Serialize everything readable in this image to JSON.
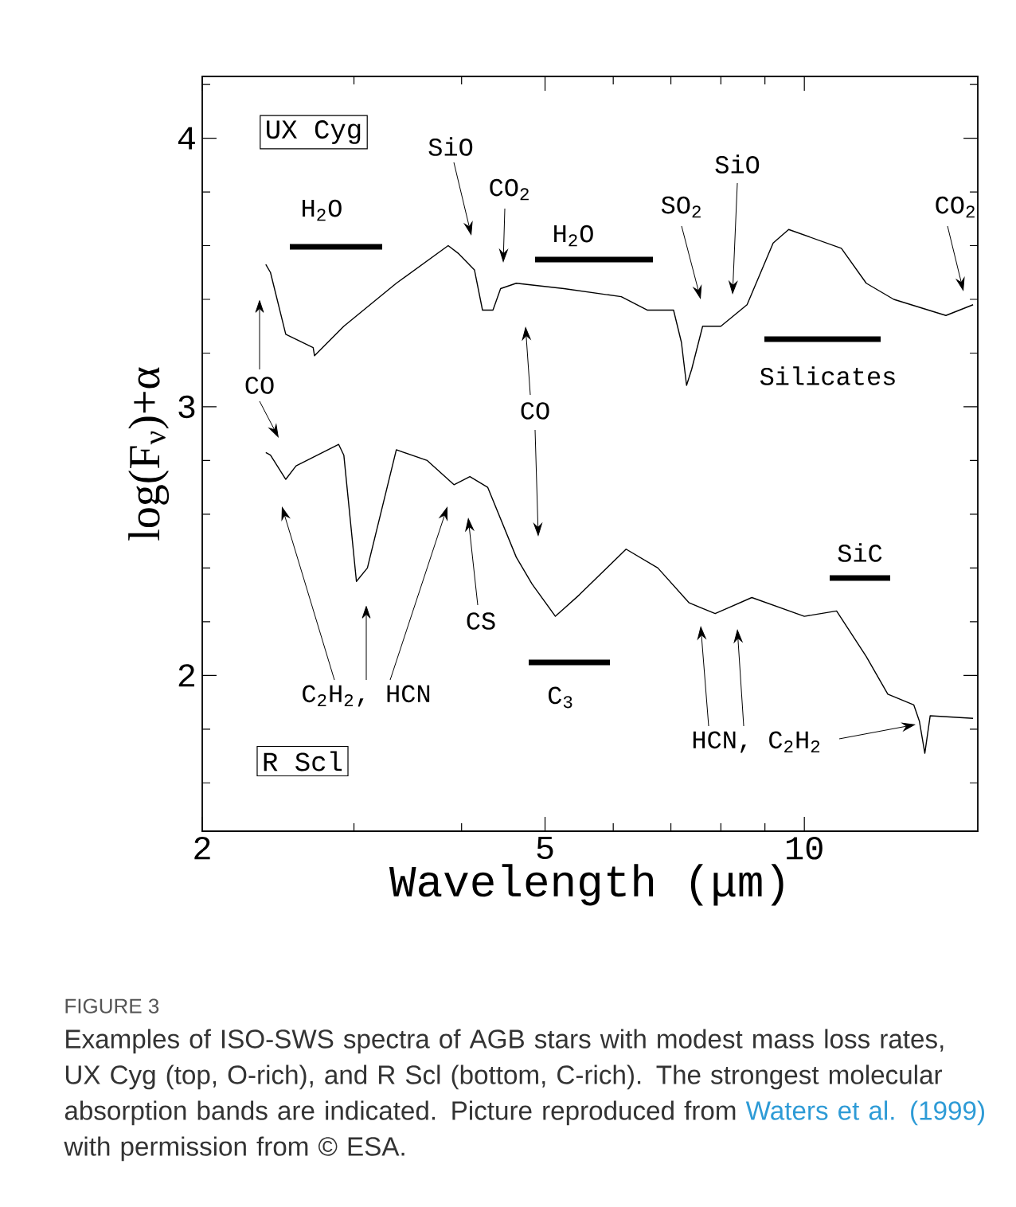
{
  "chart_data": {
    "type": "line",
    "xlabel": "Wavelength (μm)",
    "ylabel": "log(F$_{ν}$)+α",
    "log": "x",
    "xlim": [
      2,
      15.9
    ],
    "ylim": [
      1.42,
      4.23
    ],
    "xticks": [
      2,
      {
        "value": 3,
        "label": null
      },
      {
        "value": 4,
        "label": null
      },
      5,
      {
        "value": 6,
        "label": null
      },
      {
        "value": 7,
        "label": null
      },
      {
        "value": 8,
        "label": null
      },
      {
        "value": 9,
        "label": null
      },
      10
    ],
    "yticks": [
      {
        "value": 1.6,
        "label": null
      },
      {
        "value": 1.8,
        "label": null
      },
      2,
      {
        "value": 2.2,
        "label": null
      },
      {
        "value": 2.4,
        "label": null
      },
      {
        "value": 2.6,
        "label": null
      },
      {
        "value": 2.8,
        "label": null
      },
      3,
      {
        "value": 3.2,
        "label": null
      },
      {
        "value": 3.4,
        "label": null
      },
      {
        "value": 3.6,
        "label": null
      },
      {
        "value": 3.8,
        "label": null
      },
      4,
      {
        "value": 4.2,
        "label": null
      }
    ],
    "grid": false,
    "marker": "none",
    "line_style": "solid",
    "series": [
      {
        "color": "#000000",
        "x": [
          2.37,
          2.4,
          2.5,
          2.69,
          2.7,
          2.92,
          3.36,
          3.86,
          3.97,
          4.14,
          4.23,
          4.35,
          4.44,
          4.63,
          5.26,
          6.13,
          6.57,
          7.05,
          7.2,
          7.3,
          7.4,
          7.62,
          8.0,
          8.58,
          9.2,
          9.59,
          11.04,
          11.8,
          12.7,
          14.6,
          15.7
        ],
        "values": [
          3.53,
          3.5,
          3.27,
          3.22,
          3.19,
          3.3,
          3.46,
          3.6,
          3.57,
          3.51,
          3.36,
          3.36,
          3.44,
          3.46,
          3.44,
          3.41,
          3.36,
          3.36,
          3.24,
          3.08,
          3.14,
          3.3,
          3.3,
          3.38,
          3.61,
          3.66,
          3.59,
          3.46,
          3.4,
          3.34,
          3.38
        ]
      },
      {
        "color": "#000000",
        "x": [
          2.37,
          2.4,
          2.5,
          2.57,
          2.88,
          2.92,
          3.02,
          3.11,
          3.36,
          3.65,
          3.92,
          4.09,
          4.29,
          4.63,
          4.83,
          5.14,
          5.48,
          6.21,
          6.76,
          7.35,
          7.88,
          8.69,
          10.0,
          10.9,
          11.8,
          12.5,
          13.4,
          13.6,
          13.8,
          14.0,
          15.7
        ],
        "values": [
          2.83,
          2.82,
          2.73,
          2.78,
          2.86,
          2.82,
          2.35,
          2.4,
          2.84,
          2.8,
          2.71,
          2.74,
          2.7,
          2.44,
          2.34,
          2.22,
          2.3,
          2.47,
          2.4,
          2.27,
          2.23,
          2.29,
          2.22,
          2.24,
          2.07,
          1.93,
          1.89,
          1.83,
          1.71,
          1.85,
          1.84
        ]
      }
    ],
    "annotations": [
      "UX Cyg",
      "R Scl",
      "SiO",
      "CO$_{2}$",
      "H$_{2}$O",
      "H$_{2}$O",
      "SO$_{2}$",
      "SiO",
      "CO$_{2}$",
      "Silicates",
      "CO",
      "CO",
      "CS",
      "C$_{2}$H$_{2}$, HCN",
      "C$_{3}$",
      "SiC",
      "HCN, C$_{2}$H$_{2}$",
      "FIGURE 3",
      "Examples of ISO-SWS spectra of AGB stars with modest mass loss rates, UX Cyg (top, O-rich), and R Scl (bottom, C-rich). The strongest molecular absorption bands are indicated. Picture reproduced from",
      "Waters et al. (1999)",
      "with permission from © ESA."
    ]
  }
}
